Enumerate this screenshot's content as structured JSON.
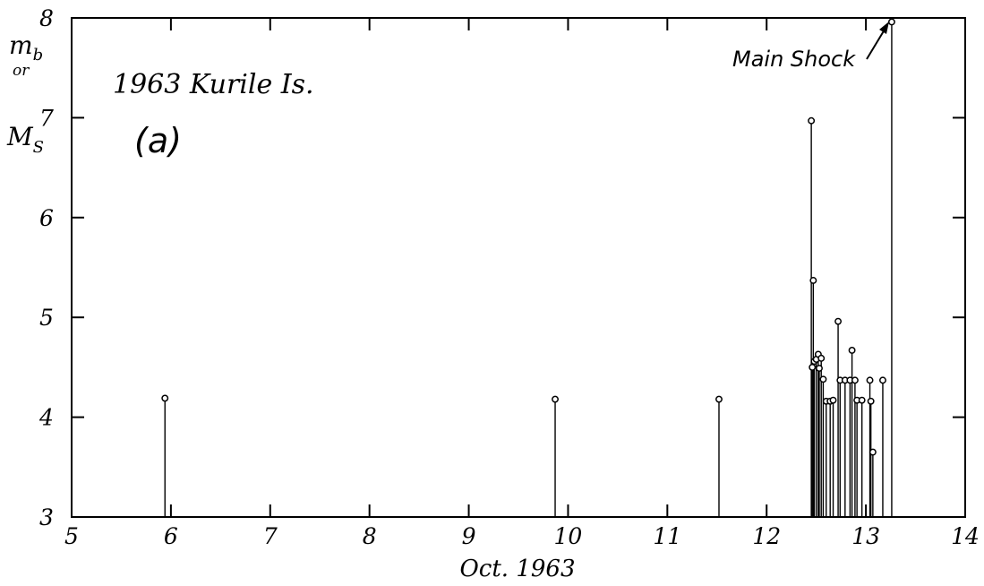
{
  "chart_data": {
    "type": "scatter",
    "style": "stem",
    "title": "1963 Kurile Is.",
    "panel_label": "(a)",
    "xlabel": "Oct. 1963",
    "ylabel": {
      "line1_main": "m",
      "line1_sub": "b",
      "line2": "or",
      "line3_main": "M",
      "line3_sub": "S"
    },
    "xlim": [
      5,
      14
    ],
    "ylim": [
      3,
      8
    ],
    "xticks": [
      5,
      6,
      7,
      8,
      9,
      10,
      11,
      12,
      13,
      14
    ],
    "xtick_labels": [
      "5",
      "6",
      "7",
      "8",
      "9",
      "10",
      "11",
      "12",
      "13",
      "14"
    ],
    "yticks": [
      3,
      4,
      5,
      6,
      7,
      8
    ],
    "ytick_labels": [
      "3",
      "4",
      "5",
      "6",
      "7",
      "8"
    ],
    "grid": false,
    "annotations": [
      {
        "text": "Main Shock",
        "x": 13.26,
        "y": 7.96
      }
    ],
    "series": [
      {
        "x": [
          5.94,
          9.87,
          11.52,
          12.45,
          12.46,
          12.47,
          12.48,
          12.5,
          12.52,
          12.53,
          12.55,
          12.57,
          12.6,
          12.64,
          12.67,
          12.72,
          12.74,
          12.79,
          12.84,
          12.86,
          12.89,
          12.91,
          12.96,
          13.04,
          13.05,
          13.07,
          13.17,
          13.26
        ],
        "y": [
          4.19,
          4.18,
          4.18,
          6.97,
          4.5,
          5.37,
          4.56,
          4.58,
          4.63,
          4.49,
          4.59,
          4.38,
          4.16,
          4.16,
          4.17,
          4.96,
          4.37,
          4.37,
          4.37,
          4.67,
          4.37,
          4.17,
          4.17,
          4.37,
          4.16,
          3.65,
          4.37,
          7.96
        ]
      }
    ]
  }
}
